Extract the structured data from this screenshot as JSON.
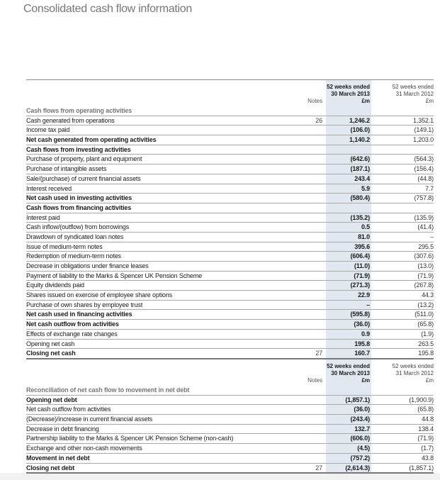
{
  "title": "Consolidated cash flow information",
  "header": {
    "notes": "Notes",
    "current": [
      "52 weeks ended",
      "30 March 2013",
      "£m"
    ],
    "previous": [
      "52 weeks ended",
      "31 March 2012",
      "£m"
    ]
  },
  "table1": [
    {
      "label": "Cash flows from operating activities",
      "style": "g",
      "notes": "",
      "cur": "",
      "prev": ""
    },
    {
      "label": "Cash generated from operations",
      "style": "",
      "notes": "26",
      "cur": "1,246.2",
      "prev": "1,352.1"
    },
    {
      "label": "Income tax paid",
      "style": "",
      "notes": "",
      "cur": "(106.0)",
      "prev": "(149.1)"
    },
    {
      "label": "Net cash generated from operating activities",
      "style": "b",
      "notes": "",
      "cur": "1,140.2",
      "prev": "1,203.0"
    },
    {
      "label": "Cash flows from investing activities",
      "style": "b",
      "notes": "",
      "cur": "",
      "prev": ""
    },
    {
      "label": "Purchase of property, plant and equipment",
      "style": "",
      "notes": "",
      "cur": "(642.6)",
      "prev": "(564.3)"
    },
    {
      "label": "Purchase of intangible assets",
      "style": "",
      "notes": "",
      "cur": "(187.1)",
      "prev": "(156.4)"
    },
    {
      "label": "Sale/(purchase) of current financial assets",
      "style": "",
      "notes": "",
      "cur": "243.4",
      "prev": "(44.8)"
    },
    {
      "label": "Interest received",
      "style": "",
      "notes": "",
      "cur": "5.9",
      "prev": "7.7"
    },
    {
      "label": "Net cash used in investing activities",
      "style": "b",
      "notes": "",
      "cur": "(580.4)",
      "prev": "(757.8)"
    },
    {
      "label": "Cash flows from financing activities",
      "style": "b",
      "notes": "",
      "cur": "",
      "prev": ""
    },
    {
      "label": "Interest paid",
      "style": "",
      "notes": "",
      "cur": "(135.2)",
      "prev": "(135.9)"
    },
    {
      "label": "Cash inflow/(outflow) from borrowings",
      "style": "",
      "notes": "",
      "cur": "0.5",
      "prev": "(41.4)"
    },
    {
      "label": "Drawdown of syndicated loan notes",
      "style": "",
      "notes": "",
      "cur": "81.0",
      "prev": "–"
    },
    {
      "label": "Issue of medium-term notes",
      "style": "",
      "notes": "",
      "cur": "395.6",
      "prev": "295.5"
    },
    {
      "label": "Redemption of medium-term notes",
      "style": "",
      "notes": "",
      "cur": "(606.4)",
      "prev": "(307.6)"
    },
    {
      "label": "Decrease in obligations under finance leases",
      "style": "",
      "notes": "",
      "cur": "(11.0)",
      "prev": "(13.0)"
    },
    {
      "label": "Payment of liability to the Marks & Spencer UK Pension Scheme",
      "style": "",
      "notes": "",
      "cur": "(71.9)",
      "prev": "(71.9)"
    },
    {
      "label": "Equity dividends paid",
      "style": "",
      "notes": "",
      "cur": "(271.3)",
      "prev": "(267.8)"
    },
    {
      "label": "Shares issued on exercise of employee share options",
      "style": "",
      "notes": "",
      "cur": "22.9",
      "prev": "44.3"
    },
    {
      "label": "Purchase of own shares by employee trust",
      "style": "",
      "notes": "",
      "cur": "–",
      "prev": "(13.2)"
    },
    {
      "label": "Net cash used in financing activities",
      "style": "b",
      "notes": "",
      "cur": "(595.8)",
      "prev": "(511.0)"
    },
    {
      "label": "Net cash outflow from activities",
      "style": "b",
      "notes": "",
      "cur": "(36.0)",
      "prev": "(65.8)"
    },
    {
      "label": "Effects of exchange rate changes",
      "style": "",
      "notes": "",
      "cur": "0.9",
      "prev": "(1.9)"
    },
    {
      "label": "Opening net cash",
      "style": "",
      "notes": "",
      "cur": "195.8",
      "prev": "263.5"
    },
    {
      "label": "Closing net cash",
      "style": "b",
      "notes": "27",
      "cur": "160.7",
      "prev": "195.8"
    }
  ],
  "table2": [
    {
      "label": "Reconciliation of net cash flow to movement in net debt",
      "style": "g",
      "notes": "",
      "cur": "",
      "prev": ""
    },
    {
      "label": "Opening net debt",
      "style": "b",
      "notes": "",
      "cur": "(1,857.1)",
      "prev": "(1,900.9)"
    },
    {
      "label": "Net cash outflow from activities",
      "style": "",
      "notes": "",
      "cur": "(36.0)",
      "prev": "(65.8)"
    },
    {
      "label": "(Decrease)/increase in current financial assets",
      "style": "",
      "notes": "",
      "cur": "(243.4)",
      "prev": "44.8"
    },
    {
      "label": "Decrease in debt financing",
      "style": "",
      "notes": "",
      "cur": "132.7",
      "prev": "138.4"
    },
    {
      "label": "Partnership liability to the Marks & Spencer UK Pension Scheme (non-cash)",
      "style": "",
      "notes": "",
      "cur": "(606.0)",
      "prev": "(71.9)"
    },
    {
      "label": "Exchange and other non-cash movements",
      "style": "",
      "notes": "",
      "cur": "(4.5)",
      "prev": "(1.7)"
    },
    {
      "label": "Movement in net debt",
      "style": "b",
      "notes": "",
      "cur": "(757.2)",
      "prev": "43.8"
    },
    {
      "label": "Closing net debt",
      "style": "b",
      "notes": "27",
      "cur": "(2,614.3)",
      "prev": "(1,857.1)"
    }
  ]
}
